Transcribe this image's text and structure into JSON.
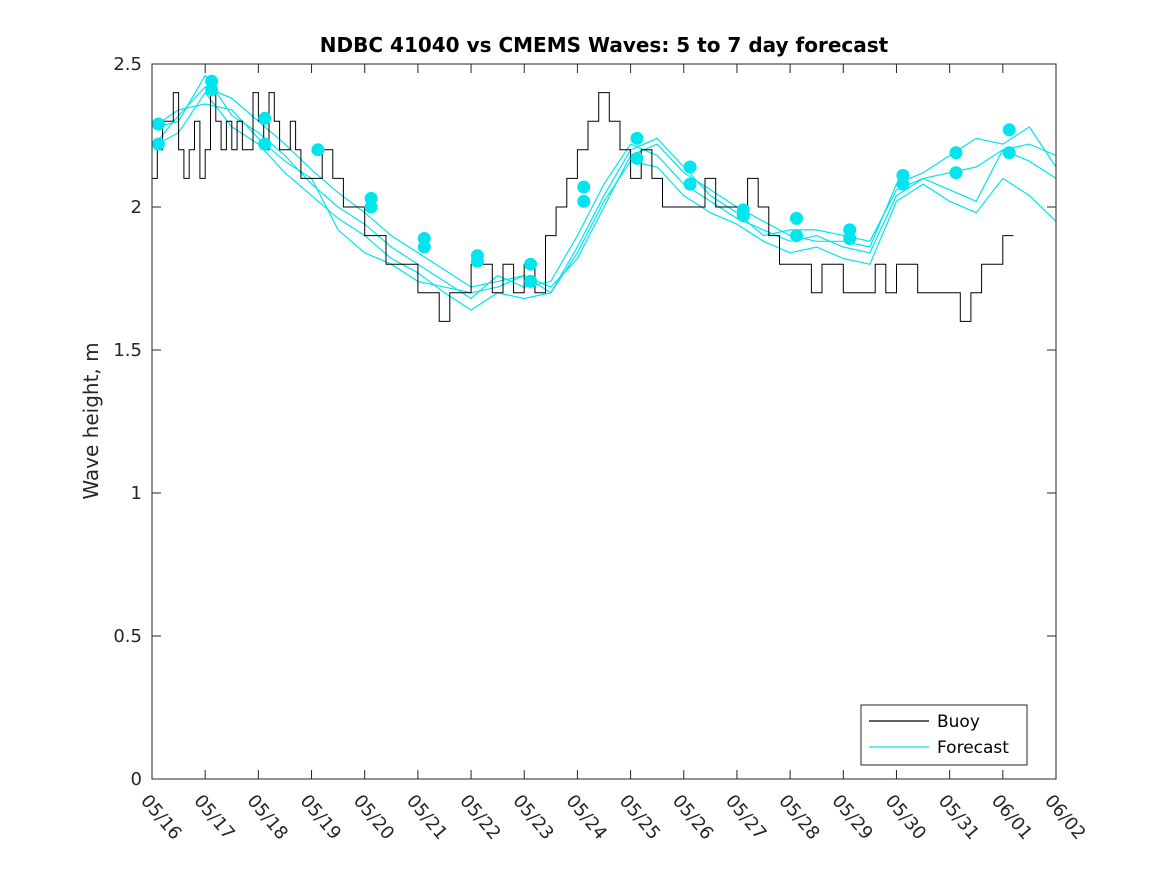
{
  "chart_data": {
    "type": "line",
    "title": "NDBC 41040 vs CMEMS Waves: 5 to 7 day forecast",
    "ylabel": "Wave height, m",
    "xlabel": "",
    "x_tick_labels": [
      "05/16",
      "05/17",
      "05/18",
      "05/19",
      "05/20",
      "05/21",
      "05/22",
      "05/23",
      "05/24",
      "05/25",
      "05/26",
      "05/27",
      "05/28",
      "05/29",
      "05/30",
      "05/31",
      "06/01",
      "06/02"
    ],
    "y_ticks": [
      0,
      0.5,
      1,
      1.5,
      2,
      2.5
    ],
    "y_tick_labels": [
      "0",
      "0.5",
      "1",
      "1.5",
      "2",
      "2.5"
    ],
    "xlim_days": [
      0,
      17
    ],
    "ylim": [
      0,
      2.5
    ],
    "grid": false,
    "legend": {
      "position": "bottom-right",
      "entries": [
        "Buoy",
        "Forecast"
      ]
    },
    "colors": {
      "buoy": "#000000",
      "forecast": "#00e5ee"
    },
    "series": [
      {
        "name": "Buoy",
        "x": [
          0,
          0.1,
          0.2,
          0.3,
          0.4,
          0.5,
          0.6,
          0.7,
          0.8,
          0.9,
          1.0,
          1.1,
          1.2,
          1.3,
          1.4,
          1.5,
          1.6,
          1.7,
          1.8,
          1.9,
          2.0,
          2.1,
          2.2,
          2.3,
          2.4,
          2.5,
          2.6,
          2.7,
          2.8,
          2.9,
          3.0,
          3.2,
          3.4,
          3.6,
          3.8,
          4.0,
          4.2,
          4.4,
          4.6,
          4.8,
          5.0,
          5.2,
          5.4,
          5.6,
          5.8,
          6.0,
          6.2,
          6.4,
          6.6,
          6.8,
          7.0,
          7.2,
          7.4,
          7.6,
          7.8,
          8.0,
          8.2,
          8.4,
          8.6,
          8.8,
          9.0,
          9.2,
          9.4,
          9.6,
          9.8,
          10.0,
          10.2,
          10.4,
          10.6,
          10.8,
          11.0,
          11.2,
          11.4,
          11.6,
          11.8,
          12.0,
          12.2,
          12.4,
          12.6,
          12.8,
          13.0,
          13.2,
          13.4,
          13.6,
          13.8,
          14.0,
          14.2,
          14.4,
          14.6,
          14.8,
          15.0,
          15.2,
          15.4,
          15.6,
          15.8,
          16.0,
          16.2
        ],
        "values": [
          2.1,
          2.2,
          2.3,
          2.3,
          2.4,
          2.2,
          2.1,
          2.2,
          2.3,
          2.1,
          2.2,
          2.4,
          2.3,
          2.2,
          2.3,
          2.2,
          2.3,
          2.2,
          2.2,
          2.4,
          2.3,
          2.2,
          2.4,
          2.3,
          2.2,
          2.2,
          2.3,
          2.2,
          2.1,
          2.1,
          2.1,
          2.2,
          2.1,
          2.0,
          2.0,
          1.9,
          1.9,
          1.8,
          1.8,
          1.8,
          1.7,
          1.7,
          1.6,
          1.7,
          1.7,
          1.8,
          1.8,
          1.7,
          1.8,
          1.7,
          1.8,
          1.7,
          1.9,
          2.0,
          2.1,
          2.2,
          2.3,
          2.4,
          2.3,
          2.2,
          2.1,
          2.2,
          2.1,
          2.0,
          2.0,
          2.0,
          2.0,
          2.1,
          2.0,
          2.0,
          2.0,
          2.1,
          2.0,
          1.9,
          1.8,
          1.8,
          1.8,
          1.7,
          1.8,
          1.8,
          1.7,
          1.7,
          1.7,
          1.8,
          1.7,
          1.8,
          1.8,
          1.7,
          1.7,
          1.7,
          1.7,
          1.6,
          1.7,
          1.8,
          1.8,
          1.9,
          1.9
        ]
      },
      {
        "name": "Forecast",
        "runs": [
          {
            "x": [
              0.1,
              0.5,
              1.0,
              1.5,
              2.0,
              2.5,
              3.0,
              3.5,
              4.0,
              4.5,
              5.0,
              5.5,
              6.0,
              6.5,
              7.0,
              7.5,
              8.0,
              8.5,
              9.0,
              9.5,
              10.0,
              10.5,
              11.0,
              11.5,
              12.0,
              12.5,
              13.0,
              13.5,
              14.0,
              14.5,
              15.0,
              15.5,
              16.0,
              16.5,
              17.0
            ],
            "values": [
              2.23,
              2.32,
              2.42,
              2.38,
              2.3,
              2.22,
              2.13,
              2.05,
              1.98,
              1.9,
              1.84,
              1.78,
              1.72,
              1.74,
              1.76,
              1.72,
              1.82,
              2.0,
              2.18,
              2.22,
              2.12,
              2.06,
              2.0,
              1.95,
              1.9,
              1.88,
              1.88,
              1.86,
              2.08,
              2.12,
              2.18,
              2.24,
              2.22,
              2.28,
              2.14
            ]
          },
          {
            "x": [
              0.1,
              0.5,
              1.0,
              1.5,
              2.0,
              2.5,
              3.0,
              3.5,
              4.0,
              4.5,
              5.0,
              5.5,
              6.0,
              6.5,
              7.0,
              7.5,
              8.0,
              8.5,
              9.0,
              9.5,
              10.0,
              10.5,
              11.0,
              11.5,
              12.0,
              12.5,
              13.0,
              13.5,
              14.0,
              14.5,
              15.0,
              15.5,
              16.0,
              16.5,
              17.0
            ],
            "values": [
              2.28,
              2.3,
              2.46,
              2.32,
              2.26,
              2.18,
              2.08,
              2.0,
              1.94,
              1.86,
              1.8,
              1.74,
              1.68,
              1.76,
              1.72,
              1.74,
              1.9,
              2.08,
              2.22,
              2.18,
              2.08,
              2.02,
              1.96,
              1.92,
              1.88,
              1.9,
              1.86,
              1.84,
              2.04,
              2.1,
              2.06,
              2.02,
              2.2,
              2.16,
              2.1
            ]
          },
          {
            "x": [
              0.1,
              0.5,
              1.0,
              1.5,
              2.0,
              2.5,
              3.0,
              3.5,
              4.0,
              4.5,
              5.0,
              5.5,
              6.0,
              6.5,
              7.0,
              7.5,
              8.0,
              8.5,
              9.0,
              9.5,
              10.0,
              10.5,
              11.0,
              11.5,
              12.0,
              12.5,
              13.0,
              13.5,
              14.0,
              14.5,
              15.0,
              15.5,
              16.0,
              16.5,
              17.0
            ],
            "values": [
              2.22,
              2.26,
              2.4,
              2.28,
              2.22,
              2.12,
              2.04,
              1.96,
              1.9,
              1.82,
              1.77,
              1.7,
              1.64,
              1.7,
              1.68,
              1.7,
              1.84,
              2.02,
              2.16,
              2.14,
              2.04,
              1.98,
              1.94,
              1.88,
              1.84,
              1.86,
              1.82,
              1.8,
              2.02,
              2.08,
              2.02,
              1.98,
              2.1,
              2.04,
              1.95
            ]
          },
          {
            "x": [
              0.1,
              0.5,
              1.0,
              1.5,
              2.0,
              2.5,
              3.0,
              3.5,
              4.0,
              4.5,
              5.0,
              5.5,
              6.0,
              6.5,
              7.0,
              7.5,
              8.0,
              8.5,
              9.0,
              9.5,
              10.0,
              10.5,
              11.0,
              11.5,
              12.0,
              12.5,
              13.0,
              13.5,
              14.0,
              14.5,
              15.0,
              15.5,
              16.0,
              16.5,
              17.0
            ],
            "values": [
              2.29,
              2.34,
              2.36,
              2.34,
              2.24,
              2.16,
              2.1,
              1.92,
              1.84,
              1.8,
              1.74,
              1.72,
              1.7,
              1.72,
              1.76,
              1.7,
              1.86,
              2.04,
              2.2,
              2.24,
              2.14,
              2.04,
              1.98,
              1.9,
              1.92,
              1.92,
              1.9,
              1.88,
              2.06,
              2.1,
              2.12,
              2.14,
              2.2,
              2.22,
              2.18
            ]
          }
        ],
        "markers": {
          "x": [
            0.12,
            0.12,
            1.12,
            1.12,
            2.12,
            2.12,
            3.12,
            4.12,
            4.12,
            5.12,
            5.12,
            6.12,
            6.12,
            7.12,
            7.12,
            8.12,
            8.12,
            9.12,
            9.12,
            10.12,
            10.12,
            11.12,
            11.12,
            12.12,
            12.12,
            13.12,
            13.12,
            14.12,
            14.12,
            15.12,
            15.12,
            16.12,
            16.12
          ],
          "values": [
            2.29,
            2.22,
            2.44,
            2.41,
            2.31,
            2.22,
            2.2,
            2.03,
            2.0,
            1.89,
            1.86,
            1.83,
            1.81,
            1.8,
            1.74,
            2.07,
            2.02,
            2.24,
            2.17,
            2.14,
            2.08,
            1.99,
            1.97,
            1.96,
            1.9,
            1.92,
            1.89,
            2.11,
            2.08,
            2.19,
            2.12,
            2.27,
            2.19
          ]
        }
      }
    ]
  }
}
